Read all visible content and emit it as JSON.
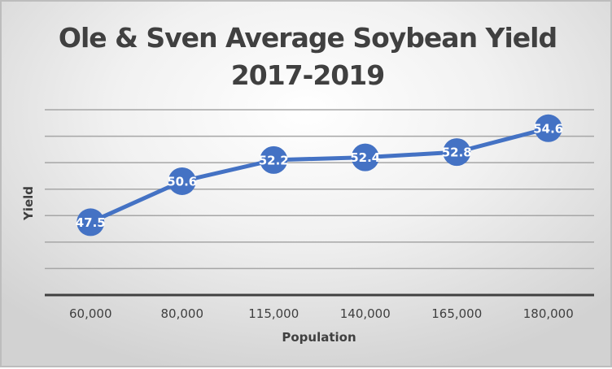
{
  "chart_data": {
    "type": "line",
    "title": "Ole & Sven Average Soybean Yield 2017-2019",
    "title_lines": [
      "Ole & Sven Average Soybean Yield",
      "2017-2019"
    ],
    "xlabel": "Population",
    "ylabel": "Yield",
    "categories": [
      "60,000",
      "80,000",
      "115,000",
      "140,000",
      "165,000",
      "180,000"
    ],
    "series": [
      {
        "name": "Yield",
        "values": [
          47.5,
          50.6,
          52.2,
          52.4,
          52.8,
          54.6
        ],
        "color": "#4472c4"
      }
    ],
    "data_labels": [
      "47.5",
      "50.6",
      "52.2",
      "52.4",
      "52.8",
      "54.6"
    ],
    "ylim": [
      42,
      56
    ],
    "y_gridline_step": 2,
    "y_tick_labels_visible": false,
    "grid": true,
    "legend": "none"
  }
}
